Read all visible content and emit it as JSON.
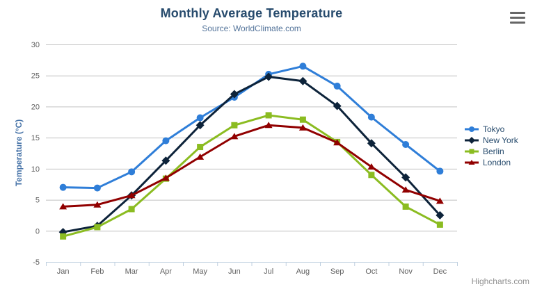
{
  "chart_data": {
    "type": "line",
    "title": "Monthly Average Temperature",
    "subtitle": "Source: WorldClimate.com",
    "xlabel": "",
    "ylabel": "Temperature (°C)",
    "categories": [
      "Jan",
      "Feb",
      "Mar",
      "Apr",
      "May",
      "Jun",
      "Jul",
      "Aug",
      "Sep",
      "Oct",
      "Nov",
      "Dec"
    ],
    "ylim": [
      -5,
      30
    ],
    "yticks": [
      -5,
      0,
      5,
      10,
      15,
      20,
      25,
      30
    ],
    "grid": true,
    "legend_position": "right",
    "series": [
      {
        "name": "Tokyo",
        "color": "#2f7ed8",
        "marker": "circle",
        "values": [
          7.0,
          6.9,
          9.5,
          14.5,
          18.2,
          21.5,
          25.2,
          26.5,
          23.3,
          18.3,
          13.9,
          9.6
        ]
      },
      {
        "name": "New York",
        "color": "#0d233a",
        "marker": "diamond",
        "values": [
          -0.2,
          0.8,
          5.7,
          11.3,
          17.0,
          22.0,
          24.8,
          24.1,
          20.1,
          14.1,
          8.6,
          2.5
        ]
      },
      {
        "name": "Berlin",
        "color": "#8bbc21",
        "marker": "square",
        "values": [
          -0.9,
          0.6,
          3.5,
          8.4,
          13.5,
          17.0,
          18.6,
          17.9,
          14.3,
          9.0,
          3.9,
          1.0
        ]
      },
      {
        "name": "London",
        "color": "#910000",
        "marker": "triangle",
        "values": [
          3.9,
          4.2,
          5.7,
          8.5,
          11.9,
          15.2,
          17.0,
          16.6,
          14.2,
          10.3,
          6.6,
          4.8
        ]
      }
    ]
  },
  "credits": {
    "label": "Highcharts.com"
  },
  "menu": {
    "icon": "hamburger-icon"
  },
  "theme": {
    "title_color": "#274b6d",
    "subtitle_color": "#55759b",
    "axis_title_color": "#4572a7",
    "tick_label_color": "#606060",
    "grid_color": "#c0c0c0",
    "axis_line_color": "#c0d0e0",
    "legend_text_color": "#274b6d",
    "credits_color": "#909090",
    "menu_icon_color": "#666666",
    "background_color": "#ffffff"
  }
}
